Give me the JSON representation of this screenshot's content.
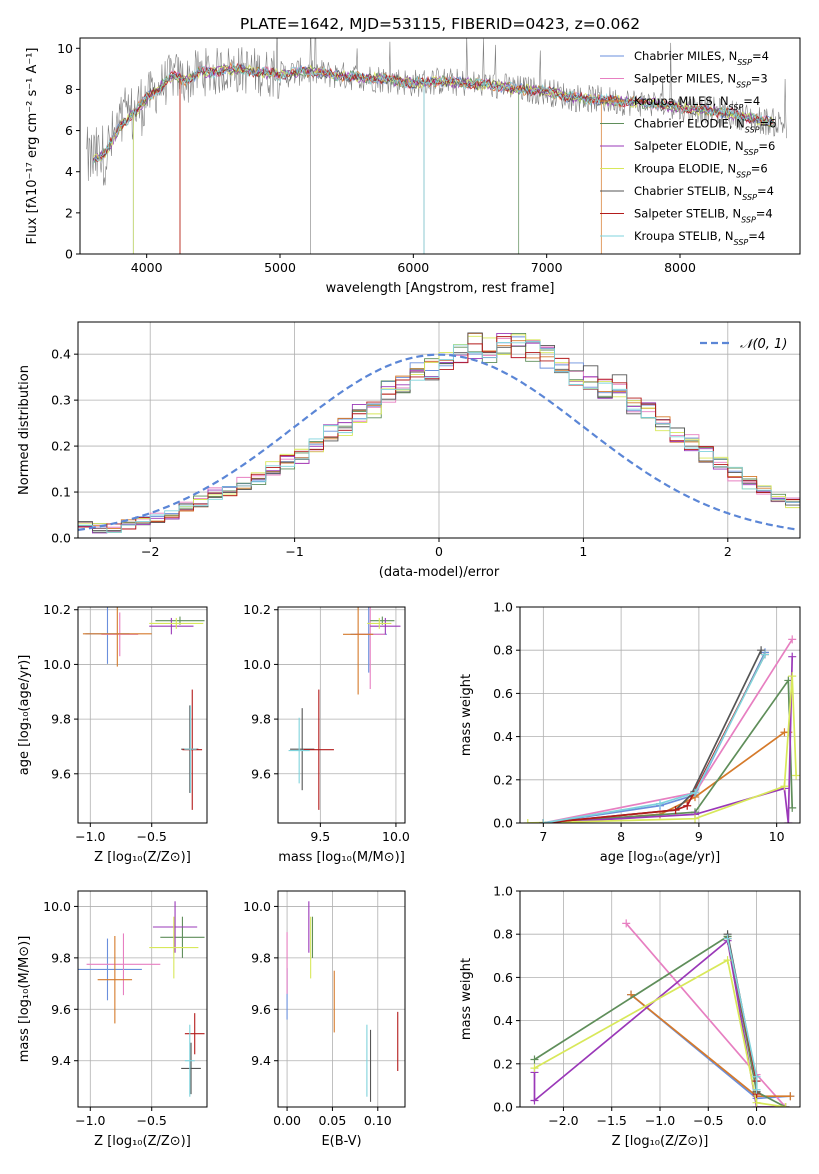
{
  "figure": {
    "title": "PLATE=1642, MJD=53115, FIBERID=0423, z=0.062"
  },
  "colors": {
    "observed": "#808080",
    "series": [
      "#6a8fdc",
      "#e77fc1",
      "#d57a2b",
      "#5f8e5a",
      "#9a38b8",
      "#d8e85a",
      "#555555",
      "#b31b1b",
      "#7fd3dc"
    ]
  },
  "chart_data": [
    {
      "id": "spectrum",
      "type": "line",
      "xlabel": "wavelength [Angstrom, rest frame]",
      "ylabel": "Flux [fλ10⁻¹⁷ erg cm⁻² s⁻¹ A⁻¹]",
      "xlim": [
        3500,
        8900
      ],
      "ylim": [
        0,
        10.5
      ],
      "xticks": [
        4000,
        5000,
        6000,
        7000,
        8000
      ],
      "yticks": [
        0,
        2,
        4,
        6,
        8,
        10
      ],
      "legend_position": "right",
      "series": [
        {
          "name": "Chabrier MILES, N_SSP=4"
        },
        {
          "name": "Salpeter MILES, N_SSP=3"
        },
        {
          "name": "Kroupa MILES, N_SSP=4"
        },
        {
          "name": "Chabrier ELODIE, N_SSP=6"
        },
        {
          "name": "Salpeter ELODIE, N_SSP=6"
        },
        {
          "name": "Kroupa ELODIE, N_SSP=6"
        },
        {
          "name": "Chabrier STELIB, N_SSP=4"
        },
        {
          "name": "Salpeter STELIB, N_SSP=4"
        },
        {
          "name": "Kroupa STELIB, N_SSP=4"
        }
      ],
      "continuum": {
        "x": [
          3600,
          3650,
          3700,
          3750,
          3800,
          3850,
          3900,
          4000,
          4100,
          4200,
          4300,
          4400,
          4500,
          4600,
          4800,
          5000,
          5200,
          5400,
          5600,
          5800,
          6000,
          6200,
          6400,
          6600,
          6800,
          7000,
          7200,
          7400,
          7600,
          7800,
          8000,
          8200,
          8400,
          8600,
          8800
        ],
        "y": [
          4.6,
          4.7,
          5.0,
          5.6,
          6.2,
          6.5,
          6.8,
          7.6,
          8.1,
          8.7,
          8.4,
          8.9,
          8.8,
          9.0,
          8.9,
          8.7,
          8.9,
          8.7,
          8.6,
          8.5,
          8.3,
          8.4,
          8.3,
          8.2,
          8.0,
          7.9,
          7.6,
          7.5,
          7.4,
          7.3,
          7.1,
          7.0,
          6.8,
          6.5,
          6.3
        ]
      },
      "observed_range": [
        3550,
        8800
      ]
    },
    {
      "id": "residuals",
      "type": "bar",
      "xlabel": "(data-model)/error",
      "ylabel": "Normed distribution",
      "xlim": [
        -2.5,
        2.5
      ],
      "ylim": [
        0,
        0.47
      ],
      "xticks": [
        -2,
        -1,
        0,
        1,
        2
      ],
      "yticks": [
        0.0,
        0.1,
        0.2,
        0.3,
        0.4
      ],
      "legend_position": "top-right",
      "reference_label": "𝒩(0, 1)",
      "bin_width": 0.1,
      "bin_start": -2.5,
      "base": [
        0.03,
        0.022,
        0.02,
        0.03,
        0.04,
        0.045,
        0.05,
        0.065,
        0.08,
        0.095,
        0.105,
        0.12,
        0.128,
        0.15,
        0.165,
        0.18,
        0.205,
        0.23,
        0.245,
        0.27,
        0.28,
        0.32,
        0.33,
        0.36,
        0.37,
        0.395,
        0.4,
        0.42,
        0.41,
        0.42,
        0.415,
        0.41,
        0.395,
        0.37,
        0.36,
        0.35,
        0.33,
        0.33,
        0.29,
        0.275,
        0.255,
        0.23,
        0.205,
        0.18,
        0.16,
        0.14,
        0.12,
        0.11,
        0.09,
        0.08,
        0.07,
        0.06,
        0.05,
        0.042,
        0.036,
        0.03,
        0.028,
        0.025,
        0.02,
        0.018
      ]
    },
    {
      "id": "age-vs-Z",
      "type": "scatter",
      "xlabel": "Z [log₁₀(Z/Z⊙)]",
      "ylabel": "age  [log₁₀(age/yr)]",
      "xlim": [
        -1.1,
        -0.05
      ],
      "ylim": [
        9.42,
        10.21
      ],
      "xticks": [
        -1.0,
        -0.5
      ],
      "yticks": [
        9.6,
        9.8,
        10.0,
        10.2
      ],
      "points": [
        {
          "x": -0.86,
          "y": 10.112,
          "xerr": 0.18,
          "yerr": 0.11
        },
        {
          "x": -0.76,
          "y": 10.11,
          "xerr": 0.15,
          "yerr": 0.08
        },
        {
          "x": -0.78,
          "y": 10.112,
          "xerr": 0.28,
          "yerr": 0.12
        },
        {
          "x": -0.27,
          "y": 10.16,
          "xerr": 0.2,
          "yerr": 0.015
        },
        {
          "x": -0.34,
          "y": 10.14,
          "xerr": 0.18,
          "yerr": 0.03
        },
        {
          "x": -0.3,
          "y": 10.15,
          "xerr": 0.22,
          "yerr": 0.02
        },
        {
          "x": -0.19,
          "y": 9.69,
          "xerr": 0.07,
          "yerr": 0.16
        },
        {
          "x": -0.17,
          "y": 9.688,
          "xerr": 0.08,
          "yerr": 0.22
        },
        {
          "x": -0.185,
          "y": 9.69,
          "xerr": 0.05,
          "yerr": 0.16
        }
      ]
    },
    {
      "id": "age-vs-mass",
      "type": "scatter",
      "xlabel": "mass [log₁₀(M/M⊙)]",
      "ylabel": "",
      "xlim": [
        9.22,
        10.06
      ],
      "ylim": [
        9.42,
        10.21
      ],
      "xticks": [
        9.5,
        10.0
      ],
      "yticks": [
        9.6,
        9.8,
        10.0,
        10.2
      ],
      "points": [
        {
          "x": 9.82,
          "y": 10.11,
          "xerr": 0.12,
          "yerr": 0.14
        },
        {
          "x": 9.83,
          "y": 10.11,
          "xerr": 0.1,
          "yerr": 0.2
        },
        {
          "x": 9.75,
          "y": 10.11,
          "xerr": 0.1,
          "yerr": 0.22
        },
        {
          "x": 9.91,
          "y": 10.16,
          "xerr": 0.08,
          "yerr": 0.015
        },
        {
          "x": 9.93,
          "y": 10.14,
          "xerr": 0.1,
          "yerr": 0.03
        },
        {
          "x": 9.89,
          "y": 10.15,
          "xerr": 0.08,
          "yerr": 0.02
        },
        {
          "x": 9.38,
          "y": 9.69,
          "xerr": 0.08,
          "yerr": 0.15
        },
        {
          "x": 9.49,
          "y": 9.688,
          "xerr": 0.1,
          "yerr": 0.22
        },
        {
          "x": 9.36,
          "y": 9.685,
          "xerr": 0.07,
          "yerr": 0.12
        }
      ]
    },
    {
      "id": "weight-vs-age",
      "type": "line",
      "xlabel": "age  [log₁₀(age/yr)]",
      "ylabel": "mass weight",
      "xlim": [
        6.7,
        10.3
      ],
      "ylim": [
        0,
        1.0
      ],
      "xticks": [
        7,
        8,
        9,
        10
      ],
      "yticks": [
        0.0,
        0.2,
        0.4,
        0.6,
        0.8,
        1.0
      ],
      "series": [
        {
          "x": [
            7.0,
            8.5,
            8.95,
            9.85
          ],
          "y": [
            0.0,
            0.08,
            0.13,
            0.79
          ]
        },
        {
          "x": [
            7.0,
            8.95,
            10.2
          ],
          "y": [
            0.0,
            0.14,
            0.85
          ]
        },
        {
          "x": [
            7.0,
            8.5,
            8.95,
            10.1,
            10.15
          ],
          "y": [
            0.0,
            0.04,
            0.12,
            0.42,
            0.42
          ]
        },
        {
          "x": [
            7.0,
            8.95,
            10.15,
            10.2
          ],
          "y": [
            0.0,
            0.05,
            0.66,
            0.07
          ]
        },
        {
          "x": [
            7.0,
            8.95,
            10.1,
            10.15,
            10.2
          ],
          "y": [
            0.0,
            0.04,
            0.16,
            0.0,
            0.77
          ]
        },
        {
          "x": [
            6.8,
            8.95,
            10.1,
            10.2,
            10.25
          ],
          "y": [
            0.0,
            0.02,
            0.17,
            0.68,
            0.22
          ]
        },
        {
          "x": [
            7.0,
            8.7,
            8.9,
            9.8
          ],
          "y": [
            0.0,
            0.06,
            0.13,
            0.8
          ]
        },
        {
          "x": [
            7.0,
            8.7,
            8.85,
            9.85
          ],
          "y": [
            0.0,
            0.06,
            0.08,
            0.78
          ]
        },
        {
          "x": [
            7.0,
            8.5,
            8.95,
            9.85
          ],
          "y": [
            0.0,
            0.09,
            0.14,
            0.78
          ]
        }
      ]
    },
    {
      "id": "mass-vs-Z",
      "type": "scatter",
      "xlabel": "Z [log₁₀(Z/Z⊙)]",
      "ylabel": "mass [log₁₀(M/M⊙)]",
      "xlim": [
        -1.1,
        -0.05
      ],
      "ylim": [
        9.22,
        10.06
      ],
      "xticks": [
        -1.0,
        -0.5
      ],
      "yticks": [
        9.4,
        9.6,
        9.8,
        10.0
      ],
      "points": [
        {
          "x": -0.86,
          "y": 9.755,
          "xerr": 0.28,
          "yerr": 0.12
        },
        {
          "x": -0.73,
          "y": 9.775,
          "xerr": 0.3,
          "yerr": 0.12
        },
        {
          "x": -0.8,
          "y": 9.715,
          "xerr": 0.14,
          "yerr": 0.17
        },
        {
          "x": -0.25,
          "y": 9.88,
          "xerr": 0.18,
          "yerr": 0.08
        },
        {
          "x": -0.31,
          "y": 9.92,
          "xerr": 0.18,
          "yerr": 0.1
        },
        {
          "x": -0.32,
          "y": 9.84,
          "xerr": 0.2,
          "yerr": 0.12
        },
        {
          "x": -0.18,
          "y": 9.37,
          "xerr": 0.08,
          "yerr": 0.1
        },
        {
          "x": -0.15,
          "y": 9.505,
          "xerr": 0.08,
          "yerr": 0.08
        },
        {
          "x": -0.19,
          "y": 9.4,
          "xerr": 0.04,
          "yerr": 0.14
        }
      ]
    },
    {
      "id": "mass-vs-EBV",
      "type": "scatter",
      "xlabel": "E(B-V)",
      "ylabel": "",
      "xlim": [
        -0.01,
        0.13
      ],
      "ylim": [
        9.22,
        10.06
      ],
      "xticks": [
        0.0,
        0.05,
        0.1
      ],
      "yticks": [
        9.4,
        9.6,
        9.8,
        10.0
      ],
      "points": [
        {
          "x": 0.0,
          "y": 9.66,
          "xerr": 0.0,
          "yerr": 0.1
        },
        {
          "x": 0.0,
          "y": 9.78,
          "xerr": 0.0,
          "yerr": 0.12
        },
        {
          "x": 0.052,
          "y": 9.63,
          "xerr": 0.0,
          "yerr": 0.12
        },
        {
          "x": 0.028,
          "y": 9.88,
          "xerr": 0.0,
          "yerr": 0.08
        },
        {
          "x": 0.024,
          "y": 9.92,
          "xerr": 0.0,
          "yerr": 0.1
        },
        {
          "x": 0.026,
          "y": 9.84,
          "xerr": 0.0,
          "yerr": 0.12
        },
        {
          "x": 0.092,
          "y": 9.38,
          "xerr": 0.0,
          "yerr": 0.14
        },
        {
          "x": 0.122,
          "y": 9.475,
          "xerr": 0.0,
          "yerr": 0.115
        },
        {
          "x": 0.088,
          "y": 9.4,
          "xerr": 0.0,
          "yerr": 0.14
        }
      ]
    },
    {
      "id": "weight-vs-Z",
      "type": "line",
      "xlabel": "Z [log₁₀(Z/Z⊙)]",
      "ylabel": "mass weight",
      "xlim": [
        -2.45,
        0.45
      ],
      "ylim": [
        0,
        1.0
      ],
      "xticks": [
        -2.0,
        -1.5,
        -1.0,
        -0.5,
        0.0
      ],
      "yticks": [
        0.0,
        0.2,
        0.4,
        0.6,
        0.8,
        1.0
      ],
      "series": [
        {
          "x": [
            -1.3,
            0.0,
            0.35
          ],
          "y": [
            0.52,
            0.04,
            0.05
          ]
        },
        {
          "x": [
            -1.35,
            0.0,
            0.3
          ],
          "y": [
            0.85,
            0.15,
            0.0
          ]
        },
        {
          "x": [
            -1.3,
            0.0,
            0.35
          ],
          "y": [
            0.52,
            0.05,
            0.05
          ]
        },
        {
          "x": [
            -2.3,
            -0.3,
            0.0,
            0.3
          ],
          "y": [
            0.22,
            0.79,
            0.07,
            0.0
          ]
        },
        {
          "x": [
            -2.3,
            -2.3,
            -0.3,
            0.0,
            0.3
          ],
          "y": [
            0.16,
            0.03,
            0.77,
            0.0,
            0.0
          ]
        },
        {
          "x": [
            -2.3,
            -0.3,
            0.0,
            0.3
          ],
          "y": [
            0.18,
            0.68,
            0.02,
            0.0
          ]
        },
        {
          "x": [
            -0.3,
            0.0,
            0.0
          ],
          "y": [
            0.8,
            0.12,
            0.07
          ]
        },
        {
          "x": [
            -0.3,
            0.0,
            0.0
          ],
          "y": [
            0.78,
            0.12,
            0.06
          ]
        },
        {
          "x": [
            -0.3,
            0.0,
            0.0
          ],
          "y": [
            0.78,
            0.14,
            0.08
          ]
        }
      ]
    }
  ]
}
